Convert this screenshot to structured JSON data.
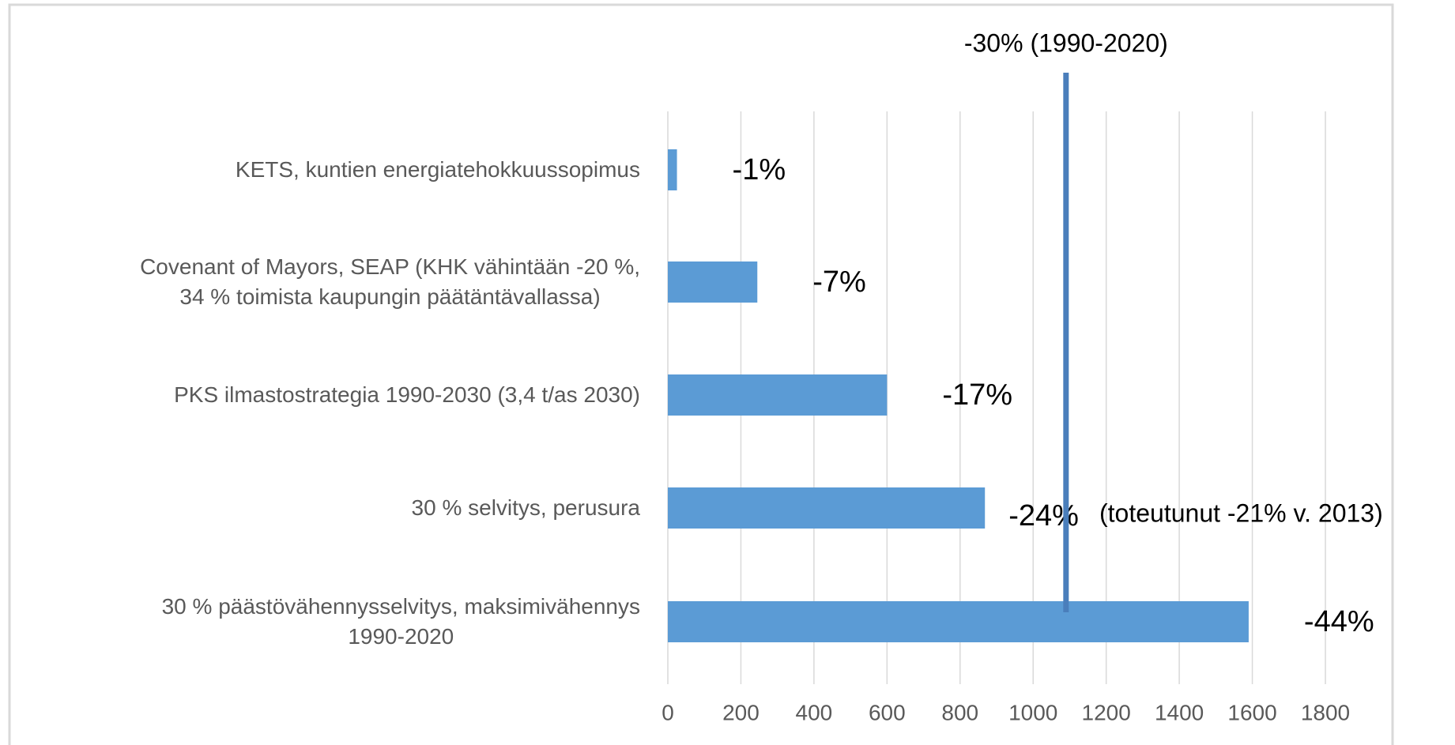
{
  "chart_data": {
    "type": "bar",
    "orientation": "horizontal",
    "categories": [
      "KETS, kuntien energiatehokkuussopimus",
      "Covenant of Mayors, SEAP (KHK vähintään -20 %,\n34 % toimista kaupungin päätäntävallassa)",
      "PKS ilmastostrategia 1990-2030 (3,4 t/as 2030)",
      "30 % selvitys, perusura",
      "30 % päästövähennysselvitys, maksimivähennys\n1990-2020"
    ],
    "values": [
      25,
      245,
      600,
      868,
      1590
    ],
    "percent_labels": [
      "-1%",
      "-7%",
      "-17%",
      "-24%",
      "-44%"
    ],
    "color": "#5b9bd5",
    "xlim": [
      0,
      1800
    ],
    "xticks": [
      0,
      200,
      400,
      600,
      800,
      1000,
      1200,
      1400,
      1600,
      1800
    ],
    "grid": true,
    "reference_line": {
      "value": 1090,
      "label": "-30% (1990-2020)",
      "color": "#4a7ebb"
    },
    "note": "(toteutunut -21% v. 2013)"
  }
}
